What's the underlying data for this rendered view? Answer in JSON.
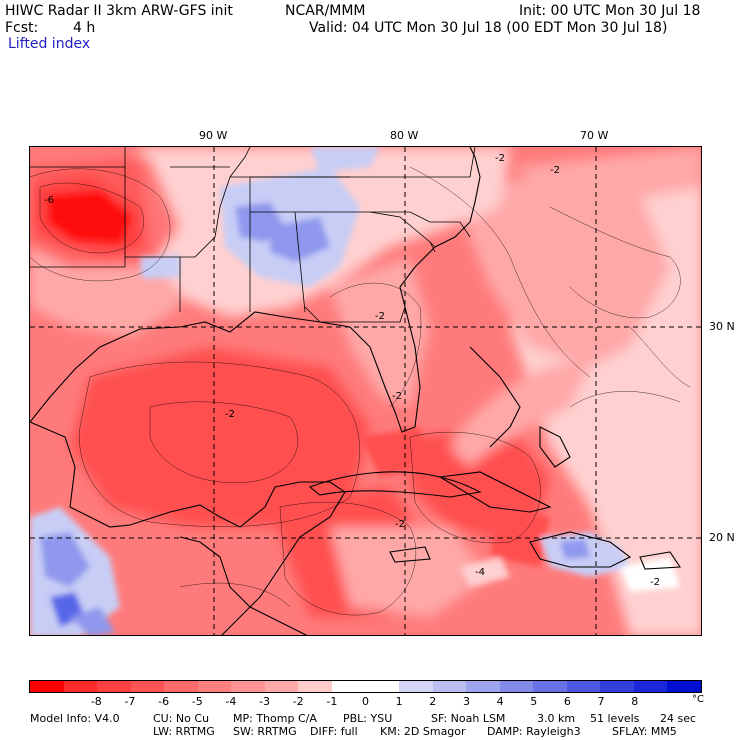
{
  "header": {
    "title_left": "HIWC Radar II 3km ARW-GFS init",
    "org": "NCAR/MMM",
    "init": "Init: 00 UTC Mon 30 Jul 18",
    "fcst_label": "Fcst:",
    "fcst_value": "4 h",
    "valid": "Valid: 04 UTC Mon 30 Jul 18 (00 EDT Mon 30 Jul 18)",
    "field": "Lifted index"
  },
  "map": {
    "lon_labels": [
      "90 W",
      "80 W",
      "70 W"
    ],
    "lat_labels": [
      "30 N",
      "20 N"
    ],
    "contour_labels": [
      "-6",
      "-2",
      "-2",
      "-2",
      "-2",
      "-2",
      "-4",
      "-2",
      "-2"
    ],
    "colors": {
      "deep_red": "#ff1010",
      "red": "#ff5050",
      "mid_red": "#ff7b7b",
      "light_red": "#ffa8a8",
      "pale_red": "#ffd0d0",
      "pale_blue": "#c8cdf5",
      "blue": "#8f98ee",
      "deep_blue": "#5766e8"
    }
  },
  "colorbar": {
    "ticks": [
      "-8",
      "-7",
      "-6",
      "-5",
      "-4",
      "-3",
      "-2",
      "-1",
      "0",
      "1",
      "2",
      "3",
      "4",
      "5",
      "6",
      "7",
      "8"
    ],
    "unit": "°C",
    "colors": [
      "#ff0000",
      "#ff2a2a",
      "#ff4040",
      "#ff5555",
      "#ff6a6a",
      "#ff7f7f",
      "#ff9494",
      "#ffaaaa",
      "#ffcccc",
      "#ffffff",
      "#ffffff",
      "#d4d6f7",
      "#b9bdf2",
      "#9ea4ee",
      "#838be9",
      "#6871e5",
      "#4d58e0",
      "#323fdc",
      "#1a28d8",
      "#0010d0"
    ]
  },
  "footer": {
    "line1": [
      "Model Info: V4.0",
      "CU: No Cu",
      "MP: Thomp C/A",
      "PBL: YSU",
      "SF: Noah LSM",
      "3.0 km",
      "51 levels",
      "24 sec"
    ],
    "line2": [
      "LW: RRTMG",
      "SW: RRTMG",
      "DIFF: full",
      "KM: 2D Smagor",
      "DAMP: Rayleigh3",
      "SFLAY: MM5"
    ]
  }
}
